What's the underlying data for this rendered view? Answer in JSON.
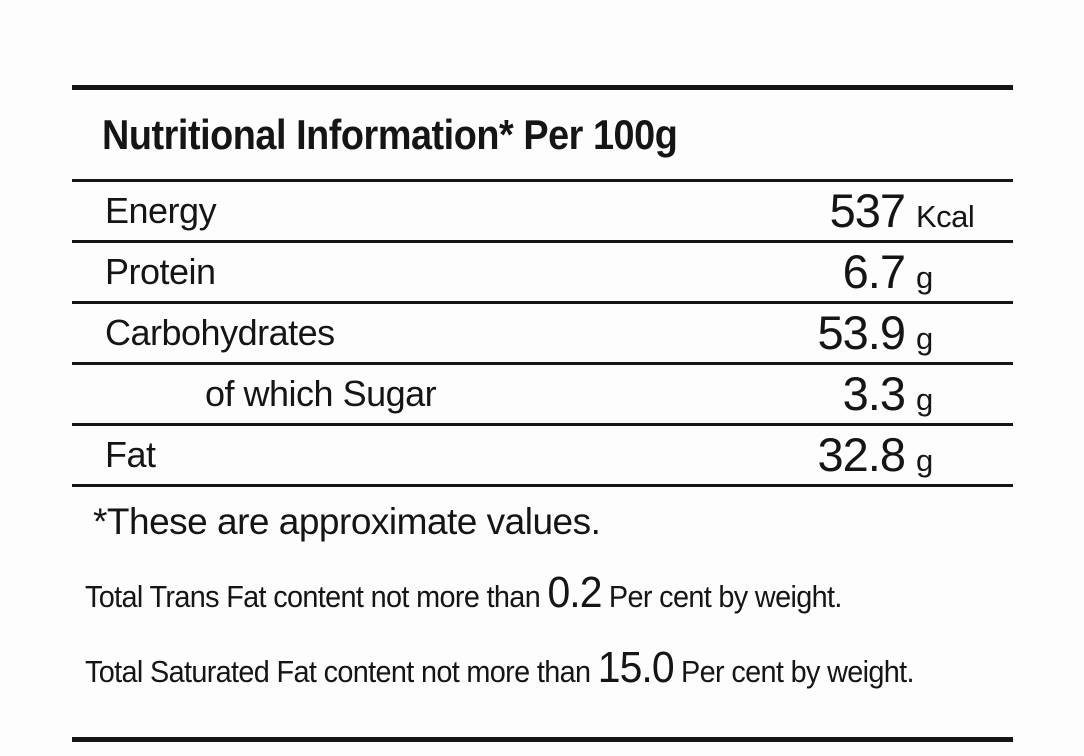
{
  "label": {
    "title": "Nutritional Information* Per 100g",
    "rows": [
      {
        "name": "Energy",
        "value": "537",
        "unit": "Kcal"
      },
      {
        "name": "Protein",
        "value": "6.7",
        "unit": "g"
      },
      {
        "name": "Carbohydrates",
        "value": "53.9",
        "unit": "g"
      },
      {
        "name": "of which Sugar",
        "value": "3.3",
        "unit": "g"
      },
      {
        "name": "Fat",
        "value": "32.8",
        "unit": "g"
      }
    ],
    "footnote": "*These are approximate values.",
    "notes": [
      {
        "prefix": "Total Trans Fat content not more than",
        "value": "0.2",
        "suffix": "Per cent by weight."
      },
      {
        "prefix": "Total Saturated Fat content not more than",
        "value": "15.0",
        "suffix": "Per cent by weight."
      }
    ],
    "colors": {
      "text": "#151515",
      "rule": "#151515",
      "background": "#fdfdfd"
    }
  }
}
